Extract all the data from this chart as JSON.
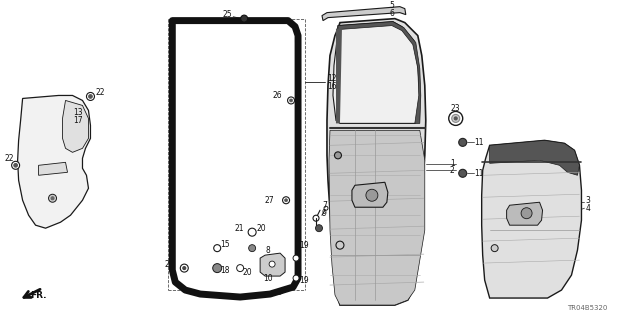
{
  "bg_color": "#ffffff",
  "diagram_code": "TR04B5320",
  "line_color": "#1a1a1a"
}
